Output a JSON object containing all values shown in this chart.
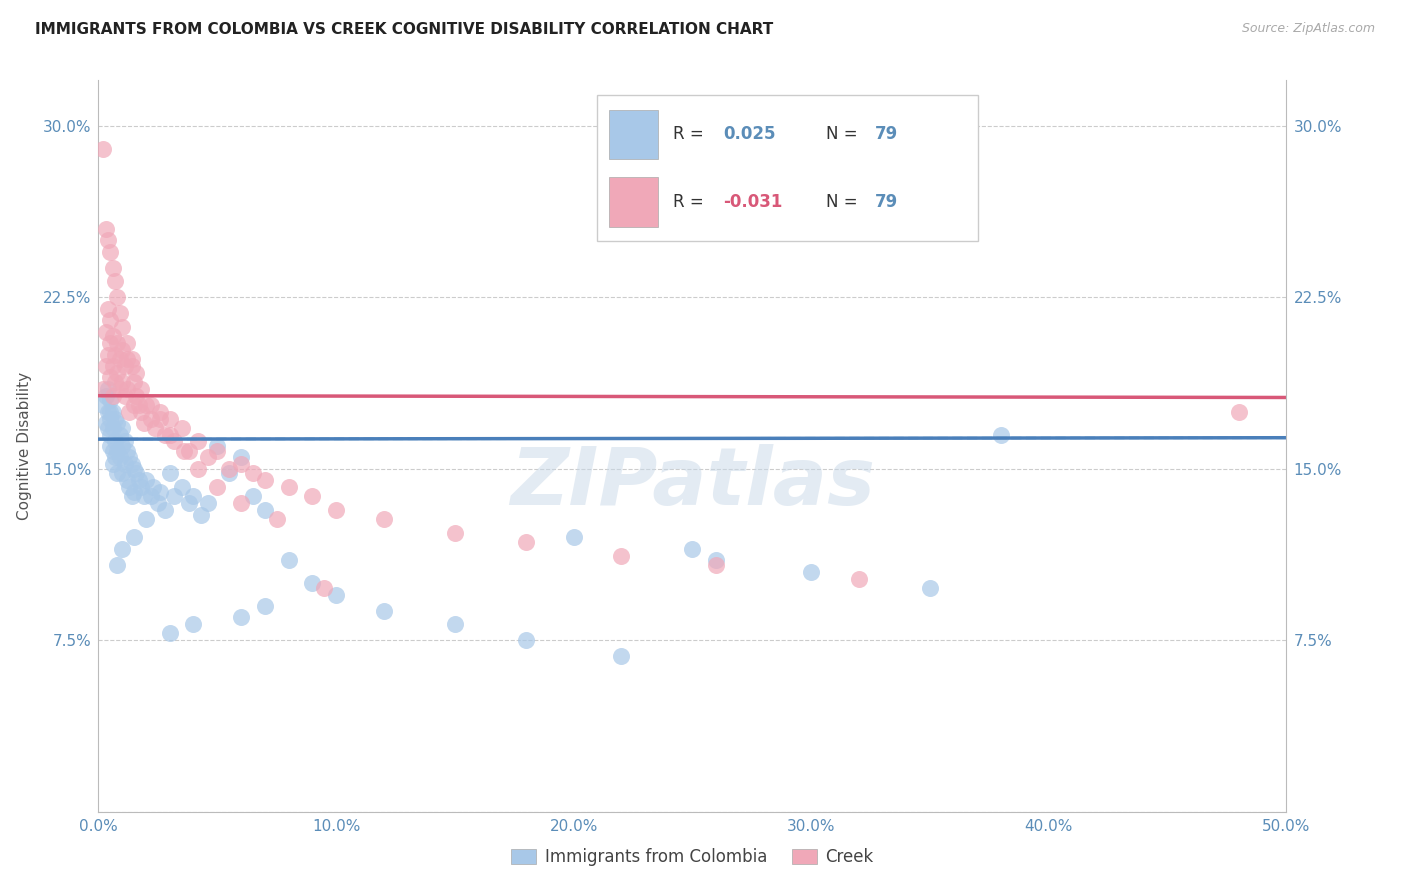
{
  "title": "IMMIGRANTS FROM COLOMBIA VS CREEK COGNITIVE DISABILITY CORRELATION CHART",
  "source": "Source: ZipAtlas.com",
  "ylabel": "Cognitive Disability",
  "legend_label_blue": "Immigrants from Colombia",
  "legend_label_pink": "Creek",
  "xlim": [
    0.0,
    0.5
  ],
  "ylim": [
    0.0,
    0.32
  ],
  "yticks": [
    0.0,
    0.075,
    0.15,
    0.225,
    0.3
  ],
  "ytick_labels": [
    "",
    "7.5%",
    "15.0%",
    "22.5%",
    "30.0%"
  ],
  "xticks": [
    0.0,
    0.1,
    0.2,
    0.3,
    0.4,
    0.5
  ],
  "xtick_labels": [
    "0.0%",
    "10.0%",
    "20.0%",
    "30.0%",
    "40.0%",
    "50.0%"
  ],
  "color_blue": "#A8C8E8",
  "color_pink": "#F0A8B8",
  "trendline_blue_solid": "#4A7FBA",
  "trendline_blue_dashed": "#88B8D8",
  "trendline_pink": "#D85878",
  "axis_color": "#5B8DB8",
  "grid_color": "#CCCCCC",
  "watermark": "ZIPatlas",
  "watermark_color": "#C8D8E8",
  "r_blue": 0.025,
  "r_pink": -0.031,
  "n": 79,
  "blue_x": [
    0.002,
    0.003,
    0.003,
    0.004,
    0.004,
    0.004,
    0.005,
    0.005,
    0.005,
    0.005,
    0.006,
    0.006,
    0.006,
    0.006,
    0.007,
    0.007,
    0.007,
    0.008,
    0.008,
    0.008,
    0.009,
    0.009,
    0.01,
    0.01,
    0.01,
    0.011,
    0.011,
    0.012,
    0.012,
    0.013,
    0.013,
    0.014,
    0.014,
    0.015,
    0.015,
    0.016,
    0.017,
    0.018,
    0.019,
    0.02,
    0.022,
    0.023,
    0.025,
    0.026,
    0.028,
    0.03,
    0.032,
    0.035,
    0.038,
    0.04,
    0.043,
    0.046,
    0.05,
    0.055,
    0.06,
    0.065,
    0.07,
    0.08,
    0.09,
    0.1,
    0.12,
    0.15,
    0.18,
    0.22,
    0.26,
    0.3,
    0.35,
    0.38,
    0.2,
    0.25,
    0.07,
    0.06,
    0.04,
    0.03,
    0.02,
    0.015,
    0.01,
    0.008,
    0.005
  ],
  "blue_y": [
    0.178,
    0.182,
    0.17,
    0.175,
    0.168,
    0.185,
    0.172,
    0.18,
    0.165,
    0.16,
    0.175,
    0.168,
    0.158,
    0.152,
    0.172,
    0.162,
    0.155,
    0.17,
    0.158,
    0.148,
    0.165,
    0.155,
    0.168,
    0.16,
    0.148,
    0.162,
    0.152,
    0.158,
    0.145,
    0.155,
    0.142,
    0.152,
    0.138,
    0.15,
    0.14,
    0.148,
    0.145,
    0.142,
    0.138,
    0.145,
    0.138,
    0.142,
    0.135,
    0.14,
    0.132,
    0.148,
    0.138,
    0.142,
    0.135,
    0.138,
    0.13,
    0.135,
    0.16,
    0.148,
    0.155,
    0.138,
    0.132,
    0.11,
    0.1,
    0.095,
    0.088,
    0.082,
    0.075,
    0.068,
    0.11,
    0.105,
    0.098,
    0.165,
    0.12,
    0.115,
    0.09,
    0.085,
    0.082,
    0.078,
    0.128,
    0.12,
    0.115,
    0.108,
    0.175
  ],
  "pink_x": [
    0.002,
    0.003,
    0.003,
    0.004,
    0.004,
    0.005,
    0.005,
    0.005,
    0.006,
    0.006,
    0.006,
    0.007,
    0.007,
    0.008,
    0.008,
    0.009,
    0.009,
    0.01,
    0.01,
    0.011,
    0.011,
    0.012,
    0.012,
    0.013,
    0.014,
    0.015,
    0.015,
    0.016,
    0.017,
    0.018,
    0.019,
    0.02,
    0.022,
    0.024,
    0.026,
    0.028,
    0.03,
    0.032,
    0.035,
    0.038,
    0.042,
    0.046,
    0.05,
    0.055,
    0.06,
    0.065,
    0.07,
    0.08,
    0.09,
    0.1,
    0.12,
    0.15,
    0.18,
    0.22,
    0.26,
    0.32,
    0.002,
    0.003,
    0.004,
    0.005,
    0.006,
    0.007,
    0.008,
    0.009,
    0.01,
    0.012,
    0.014,
    0.016,
    0.018,
    0.022,
    0.026,
    0.03,
    0.036,
    0.042,
    0.05,
    0.06,
    0.075,
    0.095,
    0.48
  ],
  "pink_y": [
    0.185,
    0.21,
    0.195,
    0.22,
    0.2,
    0.215,
    0.205,
    0.19,
    0.208,
    0.195,
    0.182,
    0.2,
    0.188,
    0.205,
    0.192,
    0.198,
    0.185,
    0.202,
    0.188,
    0.195,
    0.182,
    0.198,
    0.185,
    0.175,
    0.195,
    0.188,
    0.178,
    0.182,
    0.178,
    0.175,
    0.17,
    0.178,
    0.172,
    0.168,
    0.175,
    0.165,
    0.172,
    0.162,
    0.168,
    0.158,
    0.162,
    0.155,
    0.158,
    0.15,
    0.152,
    0.148,
    0.145,
    0.142,
    0.138,
    0.132,
    0.128,
    0.122,
    0.118,
    0.112,
    0.108,
    0.102,
    0.29,
    0.255,
    0.25,
    0.245,
    0.238,
    0.232,
    0.225,
    0.218,
    0.212,
    0.205,
    0.198,
    0.192,
    0.185,
    0.178,
    0.172,
    0.165,
    0.158,
    0.15,
    0.142,
    0.135,
    0.128,
    0.098,
    0.175
  ]
}
